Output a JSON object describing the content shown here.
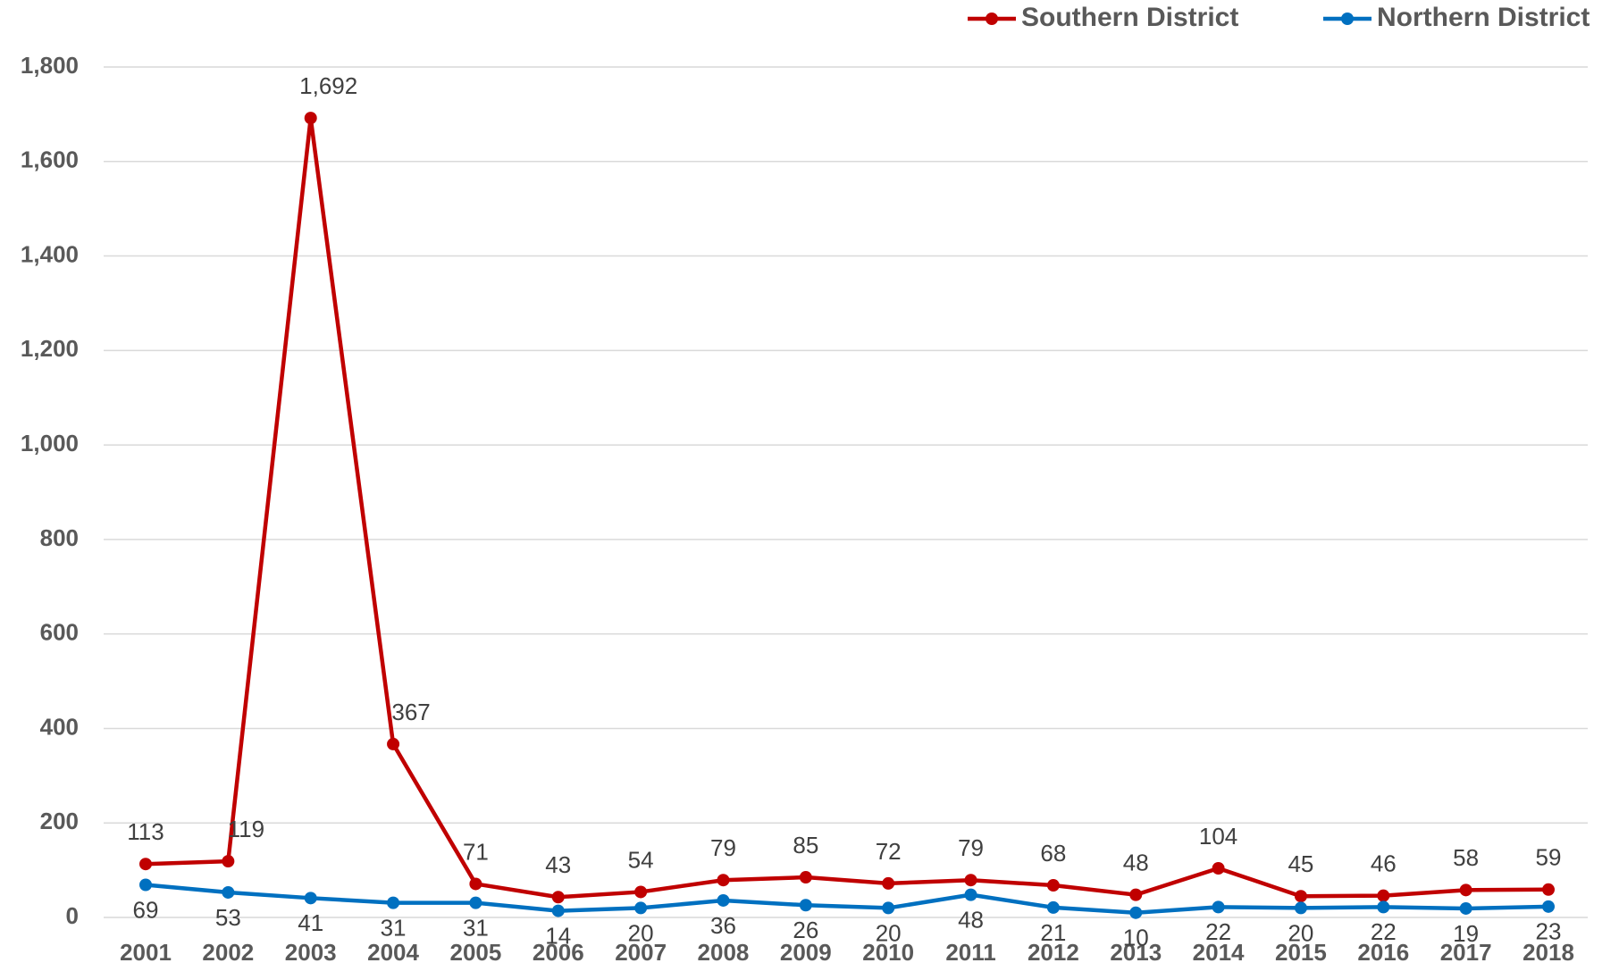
{
  "chart_data": {
    "type": "line",
    "categories": [
      "2001",
      "2002",
      "2003",
      "2004",
      "2005",
      "2006",
      "2007",
      "2008",
      "2009",
      "2010",
      "2011",
      "2012",
      "2013",
      "2014",
      "2015",
      "2016",
      "2017",
      "2018"
    ],
    "series": [
      {
        "name": "Southern District",
        "color": "#c00000",
        "values": [
          113,
          119,
          1692,
          367,
          71,
          43,
          54,
          79,
          85,
          72,
          79,
          68,
          48,
          104,
          45,
          46,
          58,
          59
        ],
        "value_labels": [
          "113",
          "119",
          "1,692",
          "367",
          "71",
          "43",
          "54",
          "79",
          "85",
          "72",
          "79",
          "68",
          "48",
          "104",
          "45",
          "46",
          "58",
          "59"
        ]
      },
      {
        "name": "Northern District",
        "color": "#0070c0",
        "values": [
          69,
          53,
          41,
          31,
          31,
          14,
          20,
          36,
          26,
          20,
          48,
          21,
          10,
          22,
          20,
          22,
          19,
          23
        ]
      }
    ],
    "ylim": [
      0,
      1800
    ],
    "yticks": [
      0,
      200,
      400,
      600,
      800,
      {
        "value": 1000,
        "label": "1,000"
      },
      {
        "value": 1200,
        "label": "1,200"
      },
      {
        "value": 1400,
        "label": "1,400"
      },
      {
        "value": 1600,
        "label": "1,600"
      },
      {
        "value": 1800,
        "label": "1,800"
      }
    ],
    "grid": true,
    "legend": "top-right"
  }
}
